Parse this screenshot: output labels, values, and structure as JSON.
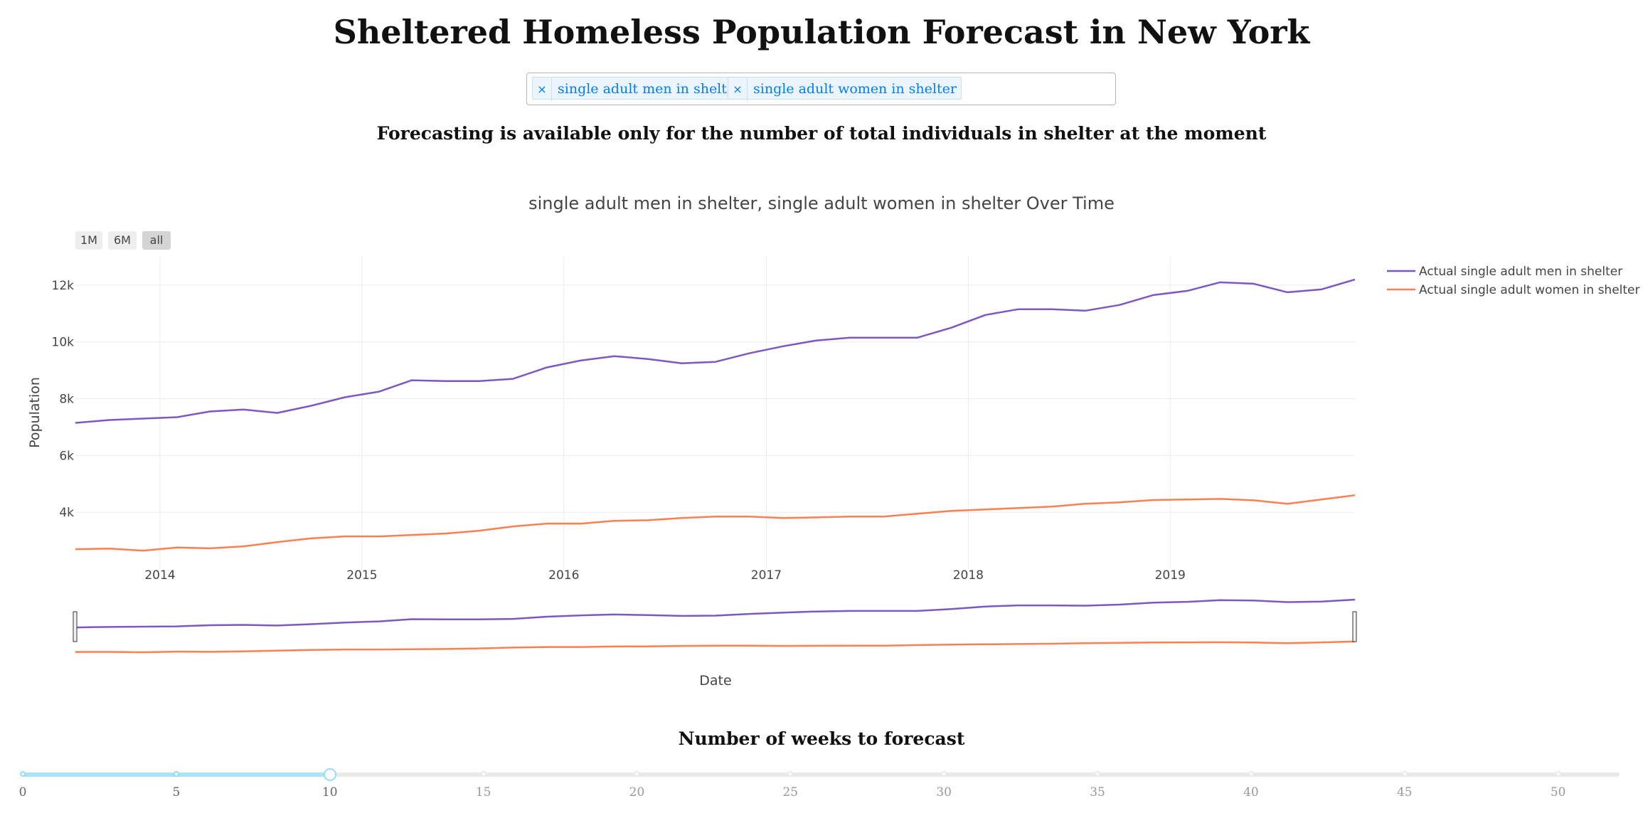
{
  "header": {
    "title": "Sheltered Homeless Population Forecast in New York",
    "notice": "Forecasting is available only for the number of total individuals in shelter at the moment"
  },
  "selector": {
    "selected": [
      "single adult men in shelter",
      "single adult women in shelter"
    ],
    "remove_symbol": "×"
  },
  "range_selector": {
    "buttons": [
      "1M",
      "6M",
      "all"
    ],
    "active": "all"
  },
  "colors": {
    "men": "#7e57c2",
    "women": "#ff7f50",
    "grid": "#ebebeb",
    "slider_accent": "#96dbfa"
  },
  "chart_data": {
    "type": "line",
    "title": "single adult men in shelter, single adult women in shelter Over Time",
    "xlabel": "Date",
    "ylabel": "Population",
    "x_ticks": [
      "2014",
      "2015",
      "2016",
      "2017",
      "2018",
      "2019"
    ],
    "y_ticks": [
      "4k",
      "6k",
      "8k",
      "10k",
      "12k"
    ],
    "xlim": [
      "2013-08-01",
      "2019-12-01"
    ],
    "ylim": [
      2000,
      13000
    ],
    "grid": true,
    "legend_position": "top-right",
    "rangeslider": true,
    "x": [
      "2013-08",
      "2013-10",
      "2013-12",
      "2014-02",
      "2014-04",
      "2014-06",
      "2014-08",
      "2014-10",
      "2014-12",
      "2015-02",
      "2015-04",
      "2015-06",
      "2015-08",
      "2015-10",
      "2015-12",
      "2016-02",
      "2016-04",
      "2016-06",
      "2016-08",
      "2016-10",
      "2016-12",
      "2017-02",
      "2017-04",
      "2017-06",
      "2017-08",
      "2017-10",
      "2017-12",
      "2018-02",
      "2018-04",
      "2018-06",
      "2018-08",
      "2018-10",
      "2018-12",
      "2019-02",
      "2019-04",
      "2019-06",
      "2019-08",
      "2019-10",
      "2019-12"
    ],
    "series": [
      {
        "name": "Actual single adult men in shelter",
        "values": [
          7150,
          7250,
          7300,
          7350,
          7550,
          7620,
          7500,
          7750,
          8050,
          8250,
          8650,
          8620,
          8620,
          8700,
          9100,
          9350,
          9500,
          9400,
          9250,
          9300,
          9600,
          9850,
          10050,
          10150,
          10150,
          10150,
          10500,
          10950,
          11150,
          11150,
          11100,
          11300,
          11650,
          11800,
          12100,
          12050,
          11750,
          11850,
          12200
        ]
      },
      {
        "name": "Actual single adult women in shelter",
        "values": [
          2700,
          2720,
          2650,
          2760,
          2730,
          2800,
          2950,
          3080,
          3150,
          3150,
          3200,
          3250,
          3350,
          3500,
          3600,
          3600,
          3700,
          3720,
          3800,
          3850,
          3850,
          3800,
          3820,
          3850,
          3850,
          3950,
          4050,
          4100,
          4150,
          4200,
          4300,
          4350,
          4430,
          4450,
          4470,
          4420,
          4300,
          4450,
          4600
        ]
      }
    ]
  },
  "slider": {
    "title": "Number of weeks to forecast",
    "marks": [
      "0",
      "5",
      "10",
      "15",
      "20",
      "25",
      "30",
      "35",
      "40",
      "45",
      "50"
    ],
    "min": 0,
    "max": 52,
    "value": 10
  }
}
